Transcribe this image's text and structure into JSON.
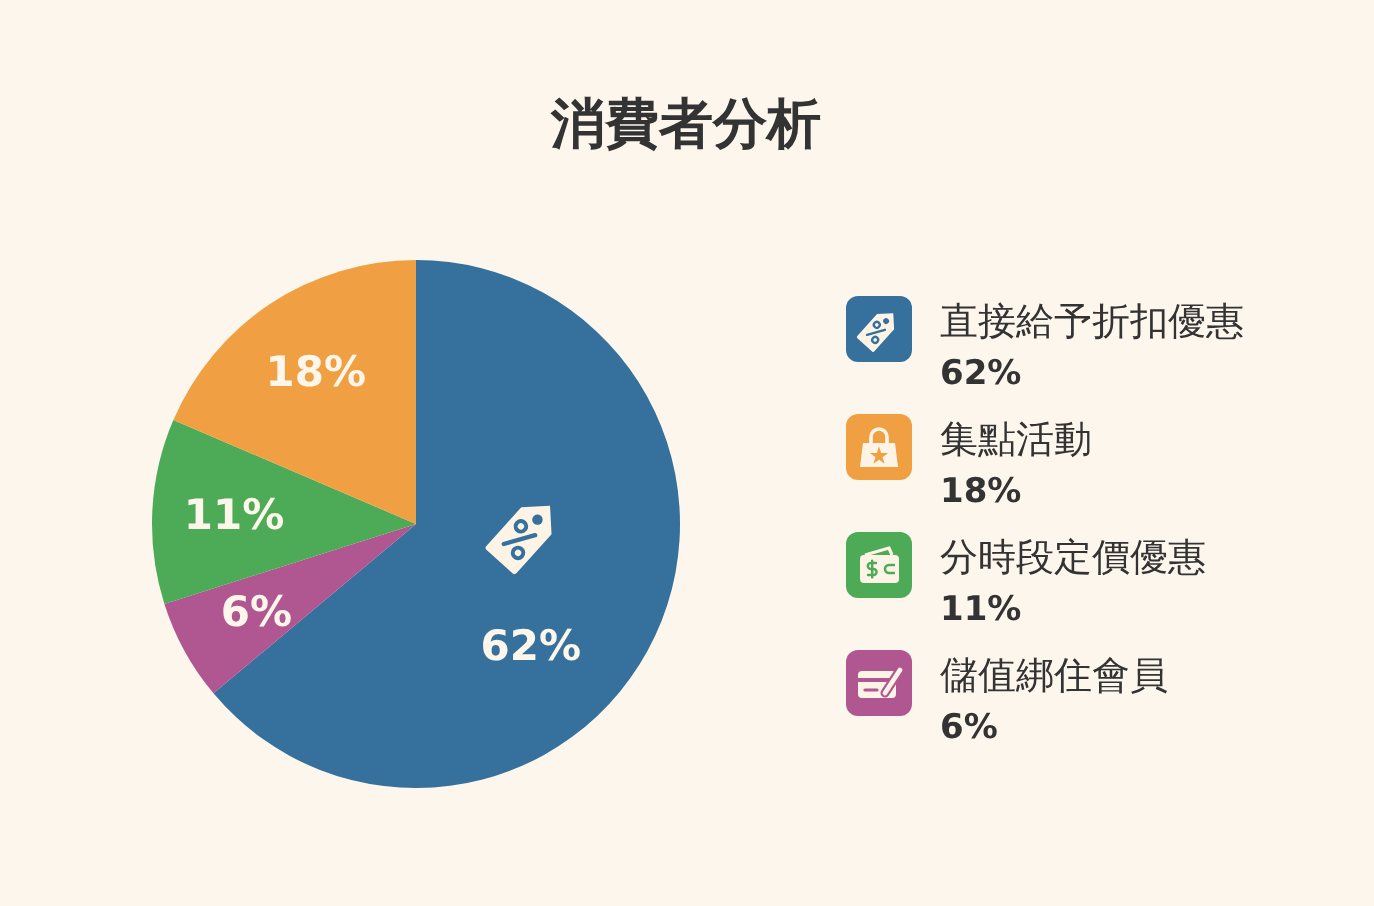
{
  "chart_data": {
    "type": "pie",
    "title": "消費者分析",
    "categories": [
      "直接給予折扣優惠",
      "集點活動",
      "分時段定價優惠",
      "儲值綁住會員"
    ],
    "values": [
      62,
      18,
      11,
      6
    ],
    "colors": [
      "#36709d",
      "#f0a042",
      "#4daa57",
      "#b05690"
    ],
    "value_labels": [
      "62%",
      "18%",
      "11%",
      "6%"
    ],
    "legend": "right"
  }
}
